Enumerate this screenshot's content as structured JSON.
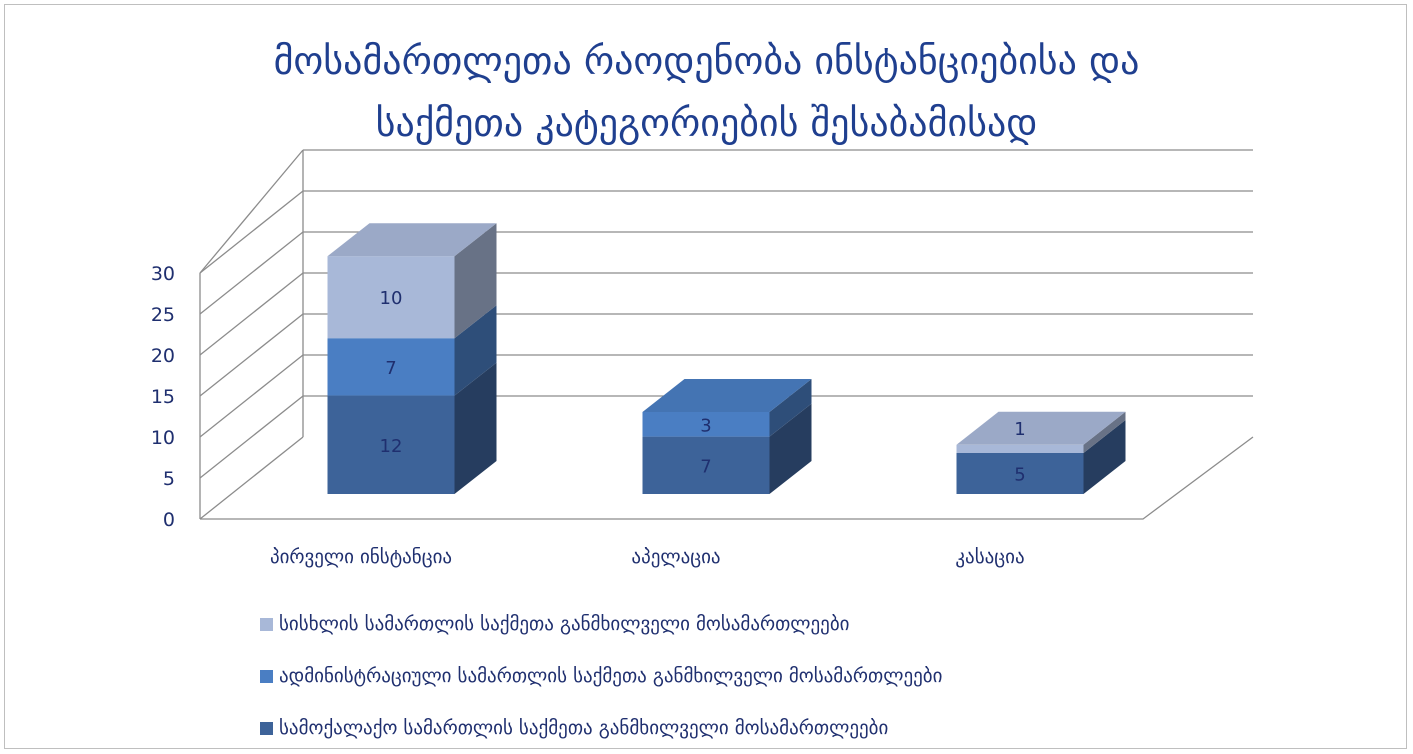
{
  "chart_data": {
    "type": "bar",
    "stacked": true,
    "three_d": true,
    "title_lines": [
      "მოსამართლეთა რაოდენობა ინსტანციებისა და",
      "საქმეთა კატეგორიების შესაბამისად"
    ],
    "categories": [
      "პირველი ინსტანცია",
      "აპელაცია",
      "კასაცია"
    ],
    "series": [
      {
        "name": "სამოქალაქო სამართლის საქმეთა განმხილველი მოსამართლეები",
        "values": [
          12,
          7,
          5
        ],
        "color": "#3d6399",
        "label_color": "#1f2f6f"
      },
      {
        "name": "ადმინისტრაციული სამართლის საქმეთა განმხილველი მოსამართლეები",
        "values": [
          7,
          3,
          0
        ],
        "color": "#4a7ec3",
        "label_color": "#1f2f6f"
      },
      {
        "name": "სისხლის სამართლის საქმეთა განმხილველი მოსამართლეები",
        "values": [
          10,
          0,
          1
        ],
        "color": "#a8b8d8",
        "label_color": "#1f2f6f"
      }
    ],
    "data_labels": [
      {
        "category": 0,
        "series": 0,
        "text": "12"
      },
      {
        "category": 0,
        "series": 1,
        "text": "7"
      },
      {
        "category": 0,
        "series": 2,
        "text": "10"
      },
      {
        "category": 1,
        "series": 0,
        "text": "7"
      },
      {
        "category": 1,
        "series": 1,
        "text": "3"
      },
      {
        "category": 2,
        "series": 0,
        "text": "5"
      },
      {
        "category": 2,
        "series": 2,
        "text": "1"
      }
    ],
    "yticks": [
      "0",
      "5",
      "10",
      "15",
      "20",
      "25",
      "30"
    ],
    "ylim": [
      0,
      30
    ],
    "grid": true,
    "legend_position": "bottom"
  },
  "legend_order": [
    2,
    1,
    0
  ],
  "colors": {
    "title": "#1f3f8f",
    "axis_text": "#1f2f6f",
    "grid": "#8c8c8c"
  }
}
